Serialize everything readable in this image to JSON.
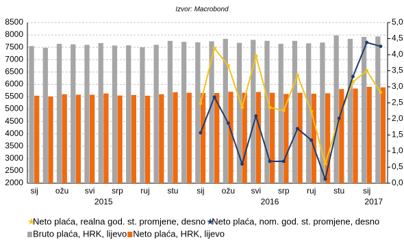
{
  "chart_data": {
    "type": "combo",
    "subtitle": "Izvor: Macrobond",
    "categories": [
      "sij",
      null,
      "ožu",
      null,
      "svi",
      null,
      "srp",
      null,
      "ruj",
      null,
      "stu",
      null,
      "sij",
      null,
      "ožu",
      null,
      "svi",
      null,
      "srp",
      null,
      "ruj",
      null,
      "stu",
      null,
      "sij",
      null
    ],
    "years": [
      "2015",
      "2016",
      "2017"
    ],
    "ylim": [
      2000,
      8500
    ],
    "yticks": [
      2000,
      2500,
      3000,
      3500,
      4000,
      4500,
      5000,
      5500,
      6000,
      6500,
      7000,
      7500,
      8000,
      8500
    ],
    "y2lim": [
      0,
      5
    ],
    "y2ticks": [
      {
        "value": 0,
        "label": "0,0"
      },
      {
        "value": 0.5,
        "label": "0,5"
      },
      {
        "value": 1,
        "label": "1,0"
      },
      {
        "value": 1.5,
        "label": "1,5"
      },
      {
        "value": 2,
        "label": "2,0"
      },
      {
        "value": 2.5,
        "label": "2,5"
      },
      {
        "value": 3,
        "label": "3,0"
      },
      {
        "value": 3.5,
        "label": "3,5"
      },
      {
        "value": 4,
        "label": "4,0"
      },
      {
        "value": 4.5,
        "label": "4,5"
      },
      {
        "value": 5,
        "label": "5,0"
      }
    ],
    "grid": true,
    "series": [
      {
        "name": "Neto plaća, realna god. st. promjene, desno",
        "type": "line",
        "axis": "y2",
        "color": "#f5c218",
        "values": [
          null,
          null,
          null,
          null,
          null,
          null,
          null,
          null,
          null,
          null,
          null,
          null,
          2.49,
          4.2,
          3.66,
          2.36,
          3.96,
          2.36,
          2.26,
          3.36,
          2.23,
          0.6,
          2.04,
          3.15,
          3.5,
          2.83
        ]
      },
      {
        "name": "Neto plaća, nom. god. st. promjene, desno",
        "type": "line",
        "axis": "y2",
        "color": "#1f3b6f",
        "values": [
          null,
          null,
          null,
          null,
          null,
          null,
          null,
          null,
          null,
          null,
          null,
          null,
          1.57,
          2.68,
          1.87,
          0.6,
          2.09,
          0.68,
          0.68,
          1.7,
          1.34,
          0.13,
          2.02,
          3.32,
          4.38,
          4.26
        ]
      },
      {
        "name": "Bruto plaća, HRK, lijevo",
        "type": "bar",
        "color": "#a6a6a6",
        "values": [
          7550,
          7480,
          7640,
          7620,
          7600,
          7670,
          7570,
          7580,
          7500,
          7600,
          7760,
          7720,
          7700,
          7740,
          7840,
          7680,
          7800,
          7760,
          7640,
          7760,
          7660,
          7690,
          7980,
          7840,
          7920,
          7940
        ]
      },
      {
        "name": "Neto plaća, HRK, lijevo",
        "type": "bar",
        "color": "#f06a10",
        "values": [
          5540,
          5510,
          5600,
          5580,
          5580,
          5630,
          5550,
          5570,
          5540,
          5600,
          5680,
          5660,
          5650,
          5650,
          5700,
          5660,
          5690,
          5660,
          5610,
          5660,
          5620,
          5640,
          5810,
          5830,
          5900,
          5880
        ]
      }
    ]
  }
}
